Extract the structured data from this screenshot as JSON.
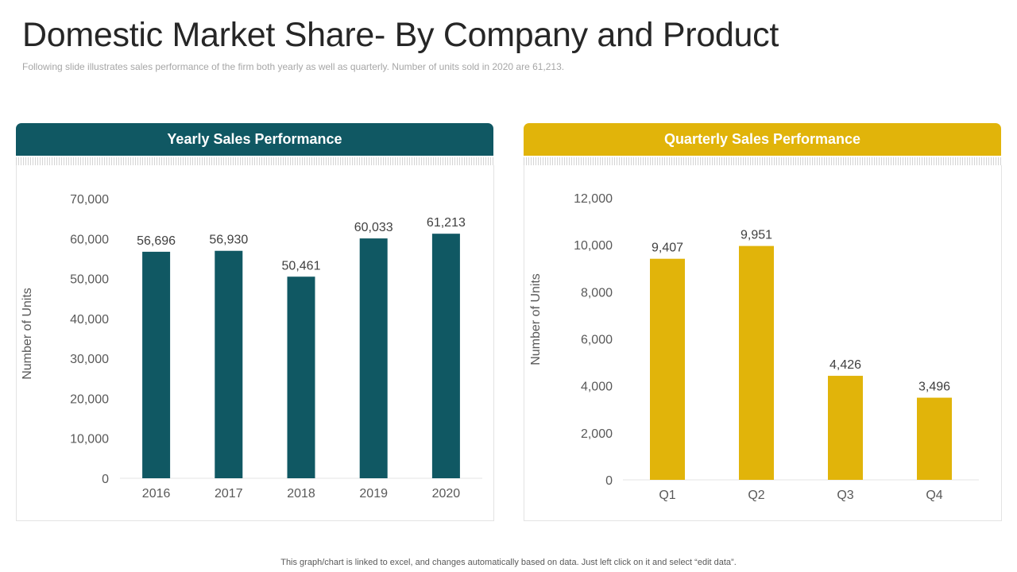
{
  "slide": {
    "title": "Domestic Market Share- By Company and Product",
    "subtitle": "Following slide illustrates sales performance  of the firm both yearly as well as quarterly. Number of units sold in 2020 are 61,213.",
    "footer": "This graph/chart is linked to excel,  and changes automatically based on data. Just left click on it and select “edit data”."
  },
  "panels": {
    "yearly": {
      "header": "Yearly Sales Performance",
      "color": "#105863"
    },
    "quarterly": {
      "header": "Quarterly Sales Performance",
      "color": "#e1b40a"
    }
  },
  "chart_data": [
    {
      "type": "bar",
      "title": "Yearly Sales Performance",
      "categories": [
        "2016",
        "2017",
        "2018",
        "2019",
        "2020"
      ],
      "values": [
        56696,
        56930,
        50461,
        60033,
        61213
      ],
      "data_labels": [
        "56,696",
        "56,930",
        "50,461",
        "60,033",
        "61,213"
      ],
      "xlabel": "",
      "ylabel": "Number of Units",
      "ylim": [
        0,
        70000
      ],
      "yticks": [
        0,
        10000,
        20000,
        30000,
        40000,
        50000,
        60000,
        70000
      ],
      "ytick_labels": [
        "0",
        "10,000",
        "20,000",
        "30,000",
        "40,000",
        "50,000",
        "60,000",
        "70,000"
      ],
      "color": "#105863",
      "grid": false
    },
    {
      "type": "bar",
      "title": "Quarterly Sales Performance",
      "categories": [
        "Q1",
        "Q2",
        "Q3",
        "Q4"
      ],
      "values": [
        9407,
        9951,
        4426,
        3496
      ],
      "data_labels": [
        "9,407",
        "9,951",
        "4,426",
        "3,496"
      ],
      "xlabel": "",
      "ylabel": "Number of Units",
      "ylim": [
        0,
        12000
      ],
      "yticks": [
        0,
        2000,
        4000,
        6000,
        8000,
        10000,
        12000
      ],
      "ytick_labels": [
        "0",
        "2,000",
        "4,000",
        "6,000",
        "8,000",
        "10,000",
        "12,000"
      ],
      "color": "#e1b40a",
      "grid": false
    }
  ]
}
